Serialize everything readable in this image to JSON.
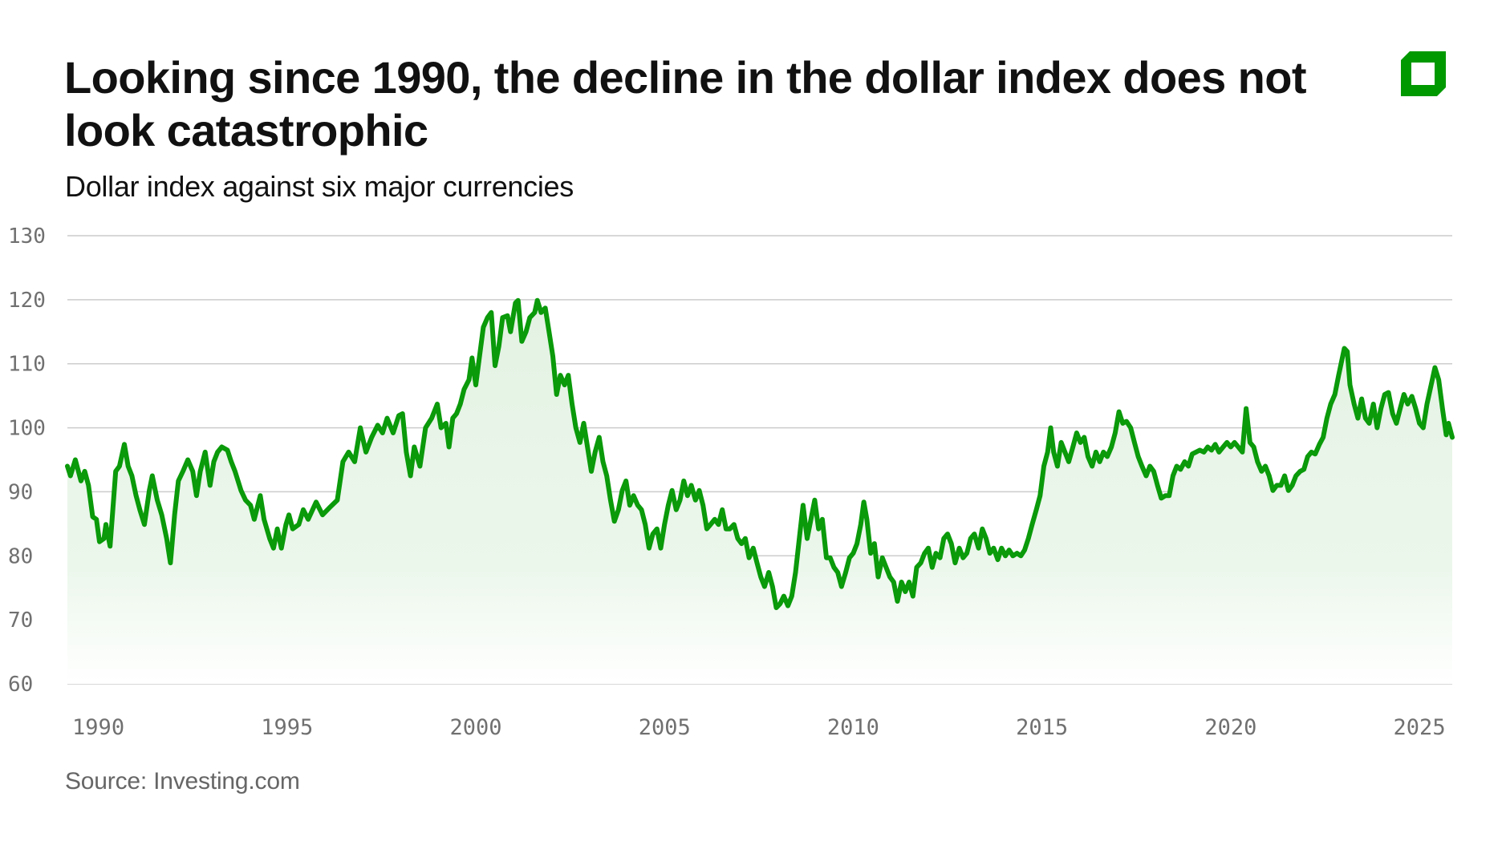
{
  "header": {
    "title": "Looking since 1990, the decline in the dollar index does not look catastrophic",
    "subtitle": "Dollar index against six major currencies",
    "logo_icon": "green-square-logo-icon"
  },
  "footer": {
    "source": "Source: Investing.com"
  },
  "colors": {
    "line": "#0a9a0a",
    "fill": "#e3f2e3",
    "grid": "#cccccc",
    "logo": "#009900"
  },
  "chart_data": {
    "type": "area",
    "title": "Looking since 1990, the decline in the dollar index does not look catastrophic",
    "subtitle": "Dollar index against six major currencies",
    "xlabel": "",
    "ylabel": "",
    "xlim": [
      1989.18,
      2025.87
    ],
    "ylim": [
      60,
      130
    ],
    "grid": "horizontal",
    "legend": "none",
    "x_ticks": [
      1990,
      1995,
      2000,
      2005,
      2010,
      2015,
      2020,
      2025
    ],
    "x_tick_labels": [
      "1990",
      "1995",
      "2000",
      "2005",
      "2010",
      "2015",
      "2020",
      "2025"
    ],
    "y_ticks": [
      60,
      70,
      80,
      90,
      100,
      110,
      120,
      130
    ],
    "y_tick_labels": [
      "60",
      "70",
      "80",
      "90",
      "100",
      "110",
      "120",
      "130"
    ],
    "series": [
      {
        "x": [
          1989.18,
          1989.26,
          1989.39,
          1989.54,
          1989.64,
          1989.74,
          1989.85,
          1989.95,
          1990.03,
          1990.15,
          1990.2,
          1990.31,
          1990.46,
          1990.56,
          1990.69,
          1990.79,
          1990.89,
          1991.0,
          1991.1,
          1991.22,
          1991.35,
          1991.43,
          1991.56,
          1991.68,
          1991.81,
          1991.91,
          1992.02,
          1992.12,
          1992.24,
          1992.37,
          1992.5,
          1992.6,
          1992.7,
          1992.83,
          1992.96,
          1993.06,
          1993.16,
          1993.27,
          1993.42,
          1993.52,
          1993.62,
          1993.78,
          1993.9,
          1994.03,
          1994.13,
          1994.29,
          1994.39,
          1994.54,
          1994.64,
          1994.74,
          1994.85,
          1994.97,
          1995.05,
          1995.15,
          1995.31,
          1995.43,
          1995.56,
          1995.77,
          1995.94,
          1996.12,
          1996.33,
          1996.48,
          1996.63,
          1996.79,
          1996.94,
          1997.09,
          1997.24,
          1997.4,
          1997.53,
          1997.65,
          1997.81,
          1997.96,
          1998.06,
          1998.16,
          1998.27,
          1998.37,
          1998.52,
          1998.67,
          1998.83,
          1998.98,
          1999.08,
          1999.21,
          1999.29,
          1999.39,
          1999.49,
          1999.59,
          1999.69,
          1999.82,
          1999.9,
          2000.0,
          2000.1,
          2000.2,
          2000.31,
          2000.41,
          2000.51,
          2000.61,
          2000.71,
          2000.84,
          2000.92,
          2001.05,
          2001.12,
          2001.22,
          2001.33,
          2001.43,
          2001.56,
          2001.63,
          2001.73,
          2001.84,
          2001.94,
          2002.04,
          2002.14,
          2002.24,
          2002.35,
          2002.45,
          2002.55,
          2002.65,
          2002.76,
          2002.86,
          2002.96,
          2003.06,
          2003.16,
          2003.27,
          2003.37,
          2003.47,
          2003.57,
          2003.67,
          2003.78,
          2003.88,
          2003.98,
          2004.08,
          2004.18,
          2004.29,
          2004.39,
          2004.49,
          2004.59,
          2004.69,
          2004.8,
          2004.9,
          2005.0,
          2005.1,
          2005.2,
          2005.31,
          2005.41,
          2005.51,
          2005.61,
          2005.71,
          2005.82,
          2005.92,
          2006.02,
          2006.12,
          2006.22,
          2006.33,
          2006.43,
          2006.53,
          2006.63,
          2006.73,
          2006.84,
          2006.94,
          2007.04,
          2007.14,
          2007.24,
          2007.35,
          2007.45,
          2007.55,
          2007.65,
          2007.76,
          2007.86,
          2007.96,
          2008.06,
          2008.16,
          2008.27,
          2008.37,
          2008.47,
          2008.57,
          2008.67,
          2008.78,
          2008.88,
          2008.98,
          2009.08,
          2009.18,
          2009.29,
          2009.39,
          2009.49,
          2009.59,
          2009.69,
          2009.8,
          2009.9,
          2010.0,
          2010.1,
          2010.2,
          2010.28,
          2010.36,
          2010.46,
          2010.56,
          2010.66,
          2010.77,
          2010.87,
          2010.97,
          2011.07,
          2011.17,
          2011.28,
          2011.38,
          2011.48,
          2011.58,
          2011.68,
          2011.79,
          2011.89,
          2011.99,
          2012.09,
          2012.19,
          2012.3,
          2012.4,
          2012.5,
          2012.6,
          2012.7,
          2012.81,
          2012.91,
          2013.01,
          2013.11,
          2013.21,
          2013.32,
          2013.42,
          2013.52,
          2013.62,
          2013.72,
          2013.83,
          2013.93,
          2014.03,
          2014.13,
          2014.23,
          2014.34,
          2014.44,
          2014.54,
          2014.64,
          2014.74,
          2014.85,
          2014.95,
          2015.05,
          2015.15,
          2015.23,
          2015.31,
          2015.41,
          2015.51,
          2015.61,
          2015.71,
          2015.82,
          2015.92,
          2016.02,
          2016.12,
          2016.22,
          2016.33,
          2016.43,
          2016.53,
          2016.63,
          2016.73,
          2016.84,
          2016.94,
          2017.04,
          2017.14,
          2017.24,
          2017.35,
          2017.45,
          2017.55,
          2017.65,
          2017.76,
          2017.86,
          2017.96,
          2018.06,
          2018.16,
          2018.27,
          2018.37,
          2018.47,
          2018.57,
          2018.67,
          2018.78,
          2018.88,
          2018.98,
          2019.08,
          2019.18,
          2019.29,
          2019.39,
          2019.49,
          2019.59,
          2019.69,
          2019.8,
          2019.9,
          2020.0,
          2020.1,
          2020.2,
          2020.31,
          2020.41,
          2020.51,
          2020.61,
          2020.71,
          2020.82,
          2020.92,
          2021.02,
          2021.12,
          2021.22,
          2021.33,
          2021.43,
          2021.53,
          2021.63,
          2021.73,
          2021.84,
          2021.94,
          2022.04,
          2022.14,
          2022.24,
          2022.35,
          2022.45,
          2022.55,
          2022.65,
          2022.76,
          2022.86,
          2023.01,
          2023.09,
          2023.16,
          2023.27,
          2023.37,
          2023.47,
          2023.57,
          2023.67,
          2023.78,
          2023.88,
          2023.98,
          2024.08,
          2024.18,
          2024.29,
          2024.39,
          2024.49,
          2024.59,
          2024.69,
          2024.8,
          2024.9,
          2025.0,
          2025.1,
          2025.2,
          2025.31,
          2025.41,
          2025.51,
          2025.61,
          2025.71,
          2025.77,
          2025.87
        ],
        "y": [
          94,
          92.5,
          95,
          91.7,
          93.2,
          91,
          86.1,
          85.7,
          82.2,
          82.7,
          84.9,
          81.5,
          93.2,
          94,
          97.4,
          94,
          92.5,
          89.4,
          87.2,
          84.9,
          90.2,
          92.5,
          88.7,
          86.4,
          82.7,
          78.9,
          86.4,
          91.7,
          93.2,
          95,
          93.2,
          89.4,
          93.2,
          96.2,
          91,
          94.7,
          96.2,
          97,
          96.5,
          94.7,
          93.2,
          90.2,
          88.7,
          87.9,
          85.7,
          89.4,
          85.7,
          82.7,
          81.2,
          84.2,
          81.2,
          84.9,
          86.4,
          84.2,
          84.9,
          87.2,
          85.7,
          88.4,
          86.4,
          87.5,
          88.7,
          94.7,
          96.2,
          94.7,
          100,
          96.2,
          98.5,
          100.4,
          99.2,
          101.5,
          99.2,
          101.9,
          102.2,
          96.2,
          92.5,
          97,
          94,
          100,
          101.5,
          103.7,
          100,
          100.7,
          97,
          101.5,
          102.2,
          103.7,
          106,
          107.5,
          110.9,
          106.7,
          111.2,
          115.7,
          117.2,
          118,
          109.7,
          112.7,
          117.2,
          117.5,
          115,
          119.5,
          119.9,
          113.5,
          115,
          117.2,
          118,
          119.9,
          118,
          118.7,
          115,
          111.2,
          105.2,
          108.2,
          106.7,
          108.2,
          103.7,
          100,
          97.7,
          100.7,
          97,
          93.2,
          96.2,
          98.5,
          94.7,
          92.5,
          88.7,
          85.4,
          87.2,
          90.2,
          91.7,
          87.9,
          89.4,
          87.9,
          87.2,
          84.9,
          81.2,
          83.4,
          84.2,
          81.2,
          84.9,
          87.9,
          90.2,
          87.2,
          88.7,
          91.7,
          89.4,
          91,
          88.7,
          90.2,
          87.9,
          84.2,
          84.9,
          85.7,
          84.9,
          87.2,
          84.2,
          84.2,
          84.9,
          82.7,
          81.9,
          82.7,
          79.7,
          81.2,
          78.9,
          76.7,
          75.2,
          77.4,
          75.2,
          71.9,
          72.5,
          73.7,
          72.2,
          73.7,
          77.4,
          82.7,
          87.9,
          82.7,
          85.7,
          88.7,
          84.2,
          85.7,
          79.7,
          79.7,
          78.2,
          77.4,
          75.2,
          77.4,
          79.7,
          80.4,
          81.9,
          84.9,
          88.4,
          85.7,
          80.4,
          81.9,
          76.7,
          79.7,
          78.2,
          76.7,
          75.9,
          72.9,
          75.9,
          74.4,
          75.9,
          73.7,
          78.2,
          78.9,
          80.4,
          81.2,
          78.2,
          80.4,
          79.7,
          82.7,
          83.4,
          81.9,
          78.9,
          81.2,
          79.7,
          80.4,
          82.7,
          83.4,
          81.2,
          84.2,
          82.7,
          80.4,
          81.2,
          79.4,
          81.2,
          80,
          80.9,
          80,
          80.4,
          80,
          80.9,
          82.7,
          84.9,
          87.2,
          89.4,
          94,
          96.2,
          100,
          96.2,
          94,
          97.7,
          96.2,
          94.7,
          97,
          99.2,
          97.7,
          98.5,
          95.5,
          94,
          96.2,
          94.7,
          96.2,
          95.5,
          97,
          99.2,
          102.5,
          100.7,
          101,
          100,
          97.7,
          95.5,
          94,
          92.5,
          94,
          93.2,
          91,
          89,
          89.4,
          89.4,
          92.5,
          94,
          93.5,
          94.7,
          94,
          95.9,
          96.2,
          96.5,
          96.2,
          97,
          96.5,
          97.4,
          96.2,
          97,
          97.7,
          97,
          97.7,
          97,
          96.2,
          103,
          97.7,
          97,
          94.7,
          93.2,
          94,
          92.5,
          90.2,
          91,
          91,
          92.5,
          90.2,
          91,
          92.5,
          93.2,
          93.5,
          95.5,
          96.2,
          95.9,
          97.4,
          98.5,
          101.5,
          103.7,
          105.2,
          108.2,
          112.4,
          111.9,
          106.7,
          103.7,
          101.5,
          104.5,
          101.5,
          100.7,
          103.7,
          100,
          103,
          105.2,
          105.5,
          102.2,
          100.7,
          103,
          105.2,
          103.7,
          104.9,
          103,
          100.7,
          100,
          103.7,
          106.7,
          109.4,
          107.5,
          103,
          98.9,
          100.7,
          98.5
        ]
      }
    ]
  }
}
